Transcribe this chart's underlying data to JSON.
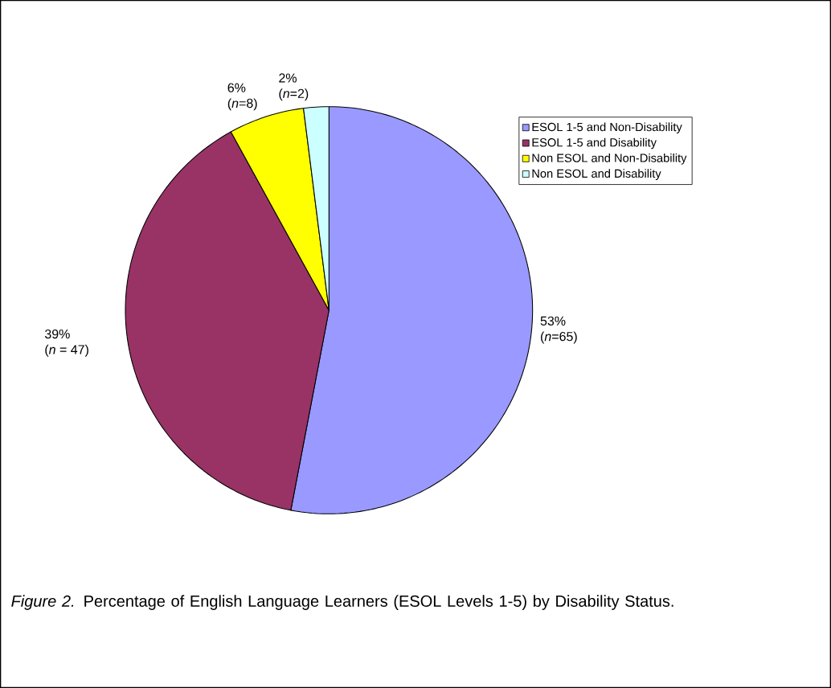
{
  "chart_data": {
    "type": "pie",
    "categories": [
      "ESOL 1-5 and Non-Disability",
      "ESOL 1-5 and Disability",
      "Non ESOL and Non-Disability",
      "Non ESOL and Disability"
    ],
    "values": [
      53,
      39,
      6,
      2
    ],
    "colors": [
      "#9999ff",
      "#993366",
      "#ffff00",
      "#ccffff"
    ],
    "value_labels": [
      "53% (*n*=65)",
      "39% (*n* = 47)",
      "6% (*n*=8)",
      "2% (*n*=2)"
    ],
    "legend": "top right",
    "annotations": [
      "*Figure 2.* Percentage of English Language Learners (ESOL Levels 1-5) by Disability Status."
    ]
  }
}
